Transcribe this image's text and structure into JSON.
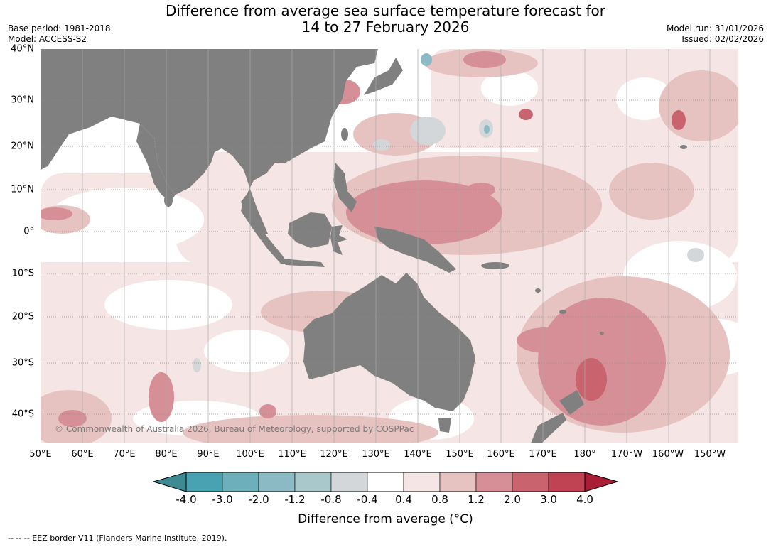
{
  "title_line1": "Difference from average sea surface temperature forecast for",
  "title_line2": "14 to 27 February 2026",
  "base_period": "Base period: 1981-2018",
  "model": "Model: ACCESS-S2",
  "model_run": "Model run: 31/01/2026",
  "issued": "Issued: 02/02/2026",
  "copyright": "© Commonwealth of Australia 2026, Bureau of Meteorology, supported by COSPPac",
  "lat_labels": [
    "40°N",
    "30°N",
    "20°N",
    "10°N",
    "0°",
    "10°S",
    "20°S",
    "30°S",
    "40°S"
  ],
  "lon_labels": [
    "50°E",
    "60°E",
    "70°E",
    "80°E",
    "90°E",
    "100°E",
    "110°E",
    "120°E",
    "130°E",
    "140°E",
    "150°E",
    "160°E",
    "170°E",
    "180°",
    "170°W",
    "160°W",
    "150°W"
  ],
  "colorbar": {
    "title": "Difference from average (°C)",
    "tick_labels": [
      "-4.0",
      "-3.0",
      "-2.0",
      "-1.2",
      "-0.8",
      "-0.4",
      "0.4",
      "0.8",
      "1.2",
      "2.0",
      "3.0",
      "4.0"
    ],
    "colors": [
      "#3d8a93",
      "#49a2b2",
      "#6db0bc",
      "#8bb9c4",
      "#a9c8cc",
      "#d3d7da",
      "#ffffff",
      "#f5e6e5",
      "#e6c3c1",
      "#d68f96",
      "#c9636e",
      "#bf4352",
      "#a91d36"
    ]
  },
  "land_color": "#808080",
  "footnote": "--  --  -- EEZ border V11 (Flanders Marine Institute, 2019)."
}
